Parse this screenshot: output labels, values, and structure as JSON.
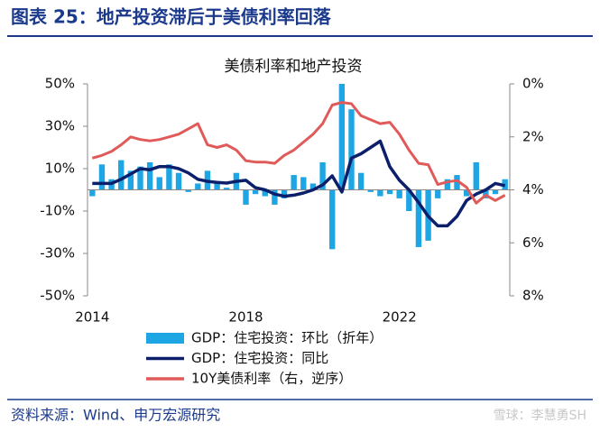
{
  "header": "图表 25：地产投资滞后于美债利率回落",
  "source": "资料来源：Wind、申万宏源研究",
  "watermark": "雪球：李慧勇SH",
  "chart_data": {
    "type": "bar_line",
    "title": "美债利率和地产投资",
    "categories": [
      "2014",
      null,
      null,
      null,
      null,
      null,
      null,
      null,
      null,
      null,
      null,
      null,
      null,
      null,
      null,
      null,
      "2018",
      null,
      null,
      null,
      null,
      null,
      null,
      null,
      null,
      null,
      null,
      null,
      null,
      null,
      null,
      null,
      "2022",
      null,
      null,
      null,
      null,
      null,
      null,
      null,
      null,
      null,
      null,
      null
    ],
    "series": [
      {
        "name": "GDP：住宅投资：环比（折年）",
        "kind": "bar",
        "color": "#1ea6e4",
        "axis": "y",
        "values": [
          -3,
          12,
          5,
          14,
          9,
          11,
          13,
          6,
          12,
          8,
          -1,
          3,
          9,
          3,
          1,
          8,
          -7,
          -2,
          -3,
          -7,
          -4,
          7,
          6,
          3,
          13,
          -28,
          50,
          38,
          8,
          -1,
          -3,
          -2,
          -4,
          -10,
          -27,
          -24,
          -4,
          5,
          7,
          -3,
          13,
          -4,
          -2,
          5
        ]
      },
      {
        "name": "GDP：住宅投资：同比",
        "kind": "line",
        "color": "#0c1f6b",
        "axis": "y",
        "values": [
          3,
          3,
          3,
          5,
          7.5,
          10,
          9.5,
          11,
          11,
          10,
          8,
          5,
          4,
          3.5,
          3.2,
          4,
          4.5,
          1,
          0,
          -2,
          -3,
          -2.5,
          -1.5,
          0,
          2.3,
          6.6,
          -1,
          15,
          17,
          20,
          23,
          11,
          4.5,
          0,
          -6,
          -12.5,
          -17,
          -17,
          -12.5,
          -5,
          -2,
          0,
          3,
          2
        ]
      },
      {
        "name": "10Y美债利率（右，逆序）",
        "kind": "line",
        "color": "#e05a5a",
        "axis": "y2",
        "values": [
          2.8,
          2.7,
          2.55,
          2.3,
          2.0,
          2.1,
          2.15,
          2.1,
          2.0,
          1.9,
          1.7,
          1.5,
          2.3,
          2.4,
          2.3,
          2.5,
          2.9,
          2.95,
          2.95,
          3.0,
          2.7,
          2.5,
          2.2,
          1.9,
          1.5,
          0.8,
          0.7,
          0.75,
          1.2,
          1.35,
          1.5,
          1.45,
          1.9,
          2.5,
          3.0,
          3.05,
          3.8,
          3.7,
          3.65,
          3.9,
          4.5,
          4.2,
          4.4,
          4.2
        ]
      }
    ],
    "ylim": [
      -50,
      50
    ],
    "yticks": [
      {
        "value": 50,
        "label": "50%"
      },
      {
        "value": 30,
        "label": "30%"
      },
      {
        "value": 10,
        "label": "10%"
      },
      {
        "value": -10,
        "label": "-10%"
      },
      {
        "value": -30,
        "label": "-30%"
      },
      {
        "value": -50,
        "label": "-50%"
      }
    ],
    "y2lim": [
      8,
      0
    ],
    "y2_inverted": true,
    "y2ticks": [
      {
        "value": 0,
        "label": "0%"
      },
      {
        "value": 2,
        "label": "2%"
      },
      {
        "value": 4,
        "label": "4%"
      },
      {
        "value": 6,
        "label": "6%"
      },
      {
        "value": 8,
        "label": "8%"
      }
    ]
  }
}
